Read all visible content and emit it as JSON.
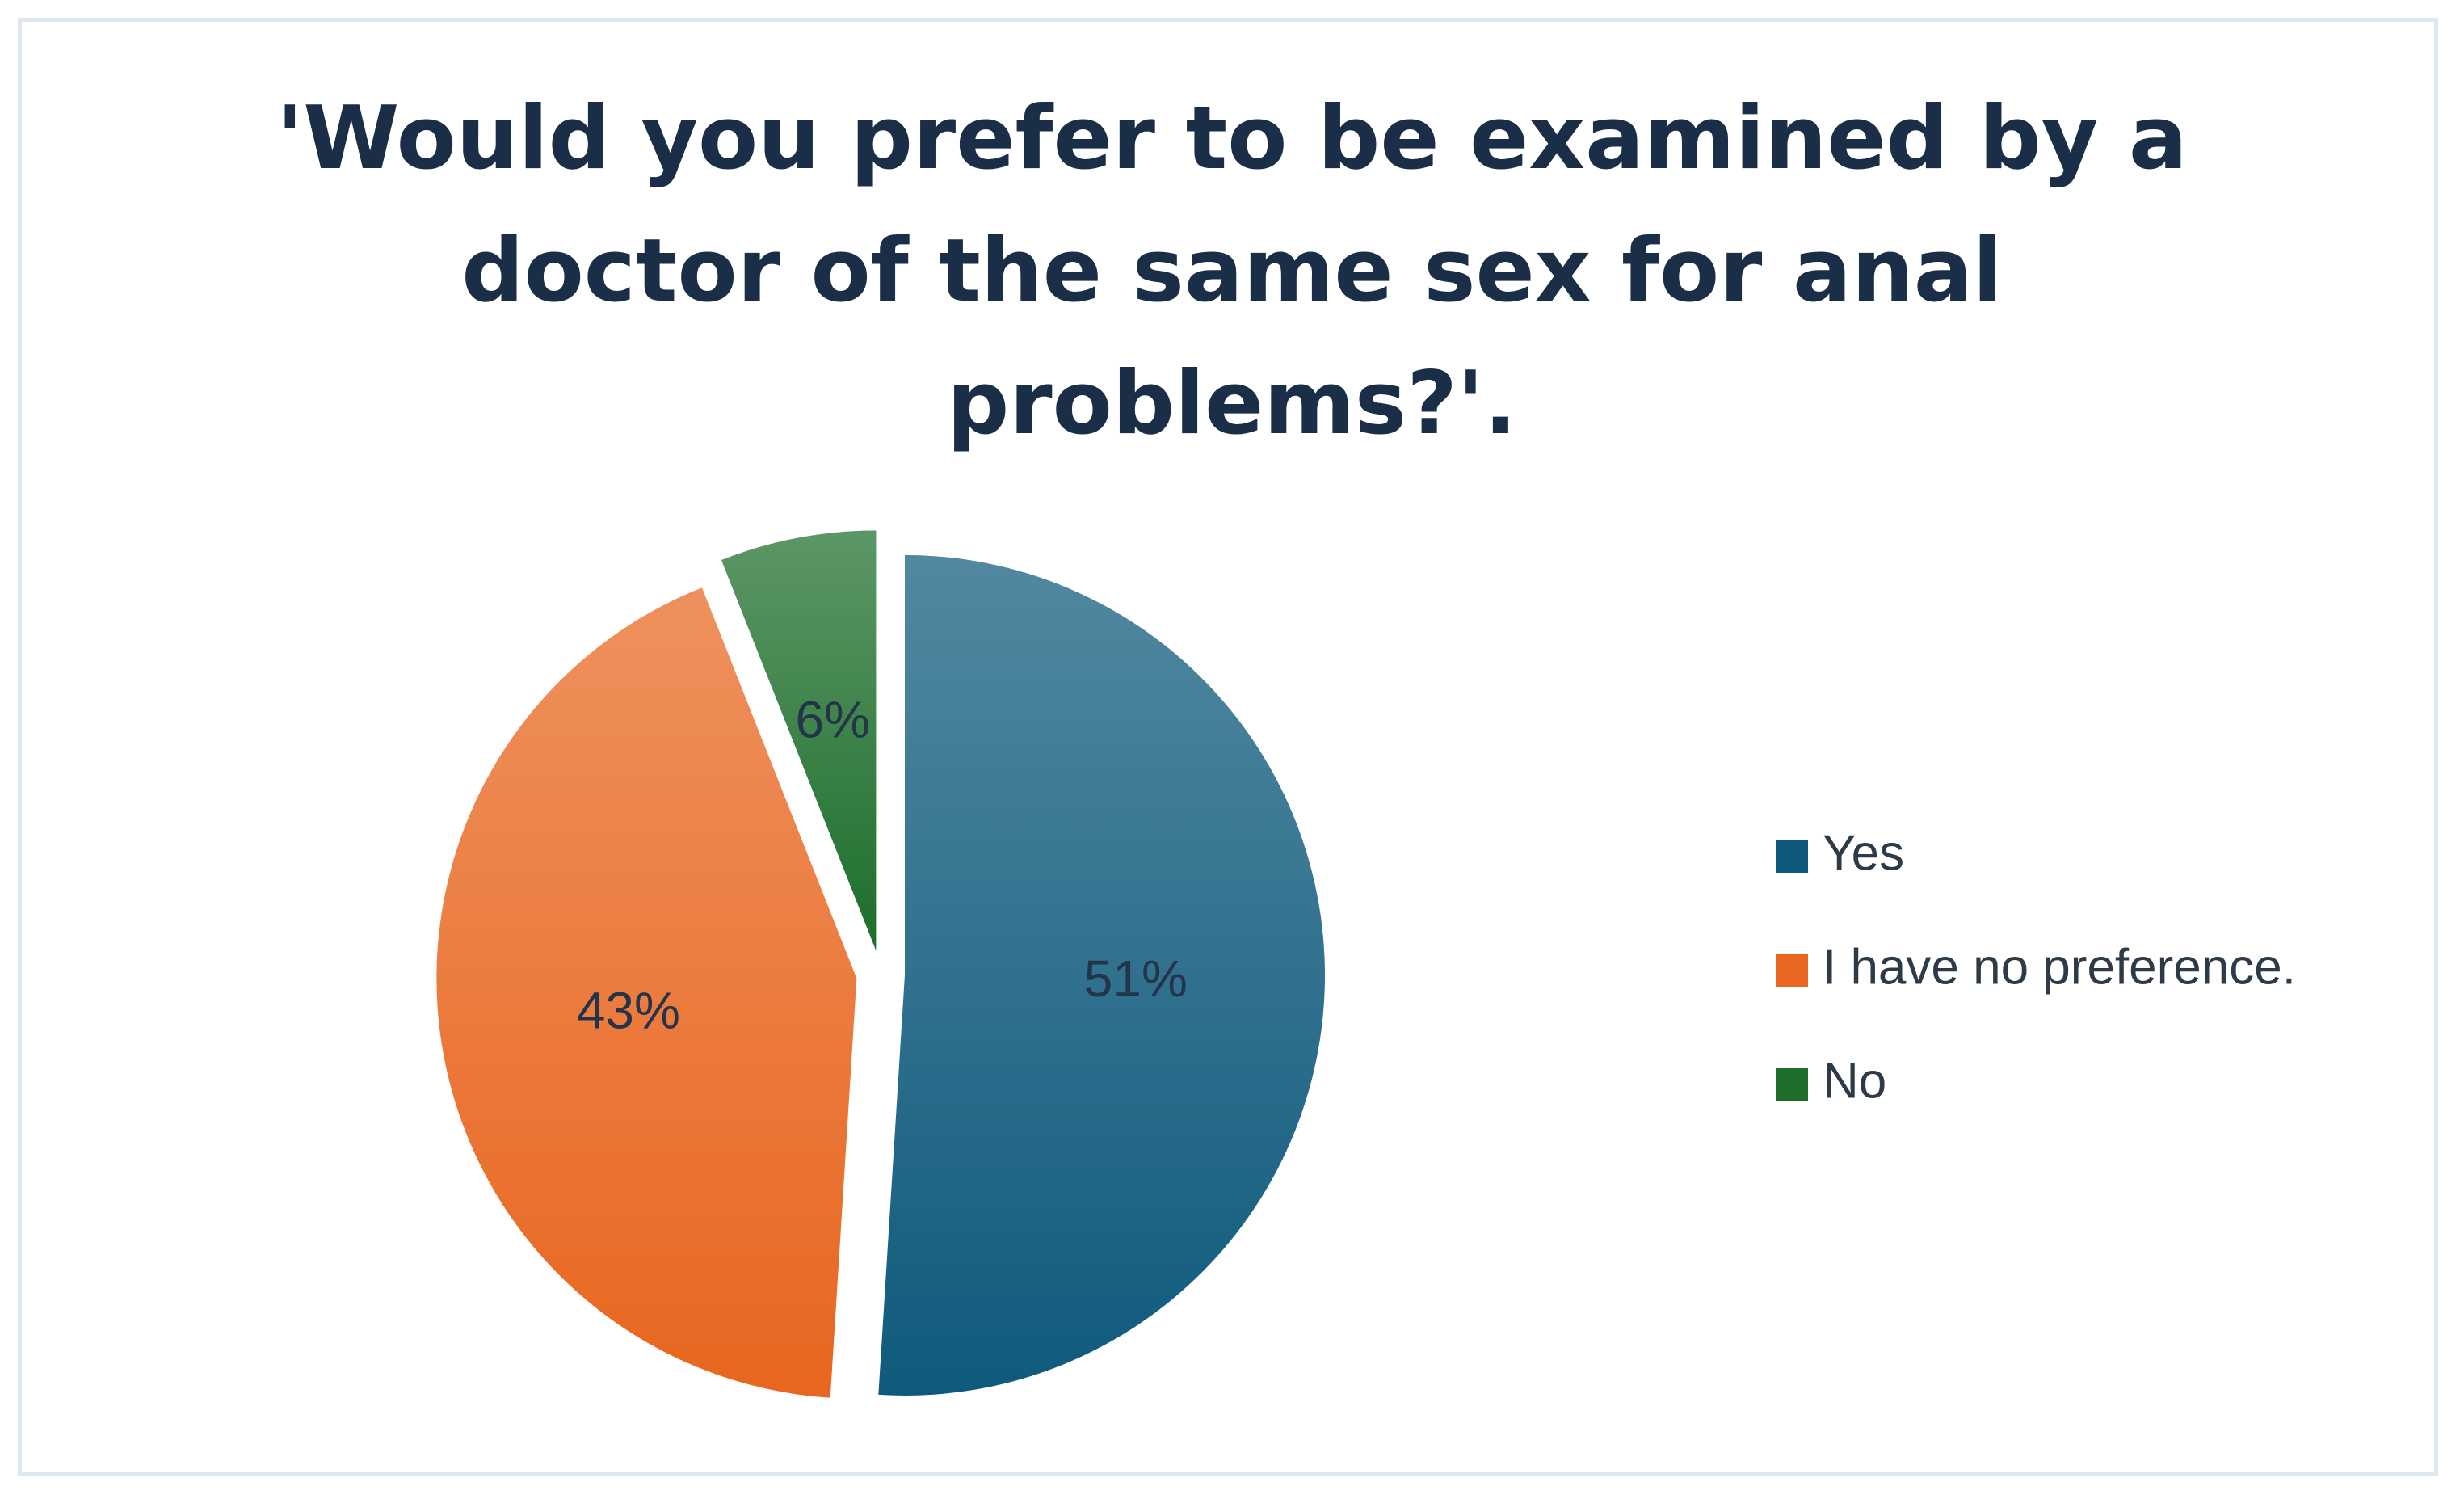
{
  "chart_data": {
    "type": "pie",
    "title": "'Would you prefer to be examined by a doctor of the same sex for anal problems?'.",
    "categories": [
      "Yes",
      "I have no preference.",
      "No"
    ],
    "values": [
      51,
      43,
      6
    ],
    "value_labels": [
      "51%",
      "43%",
      "6%"
    ],
    "colors": [
      "#0f5a7c",
      "#e8661f",
      "#1d6e2b"
    ],
    "legend": "right"
  }
}
